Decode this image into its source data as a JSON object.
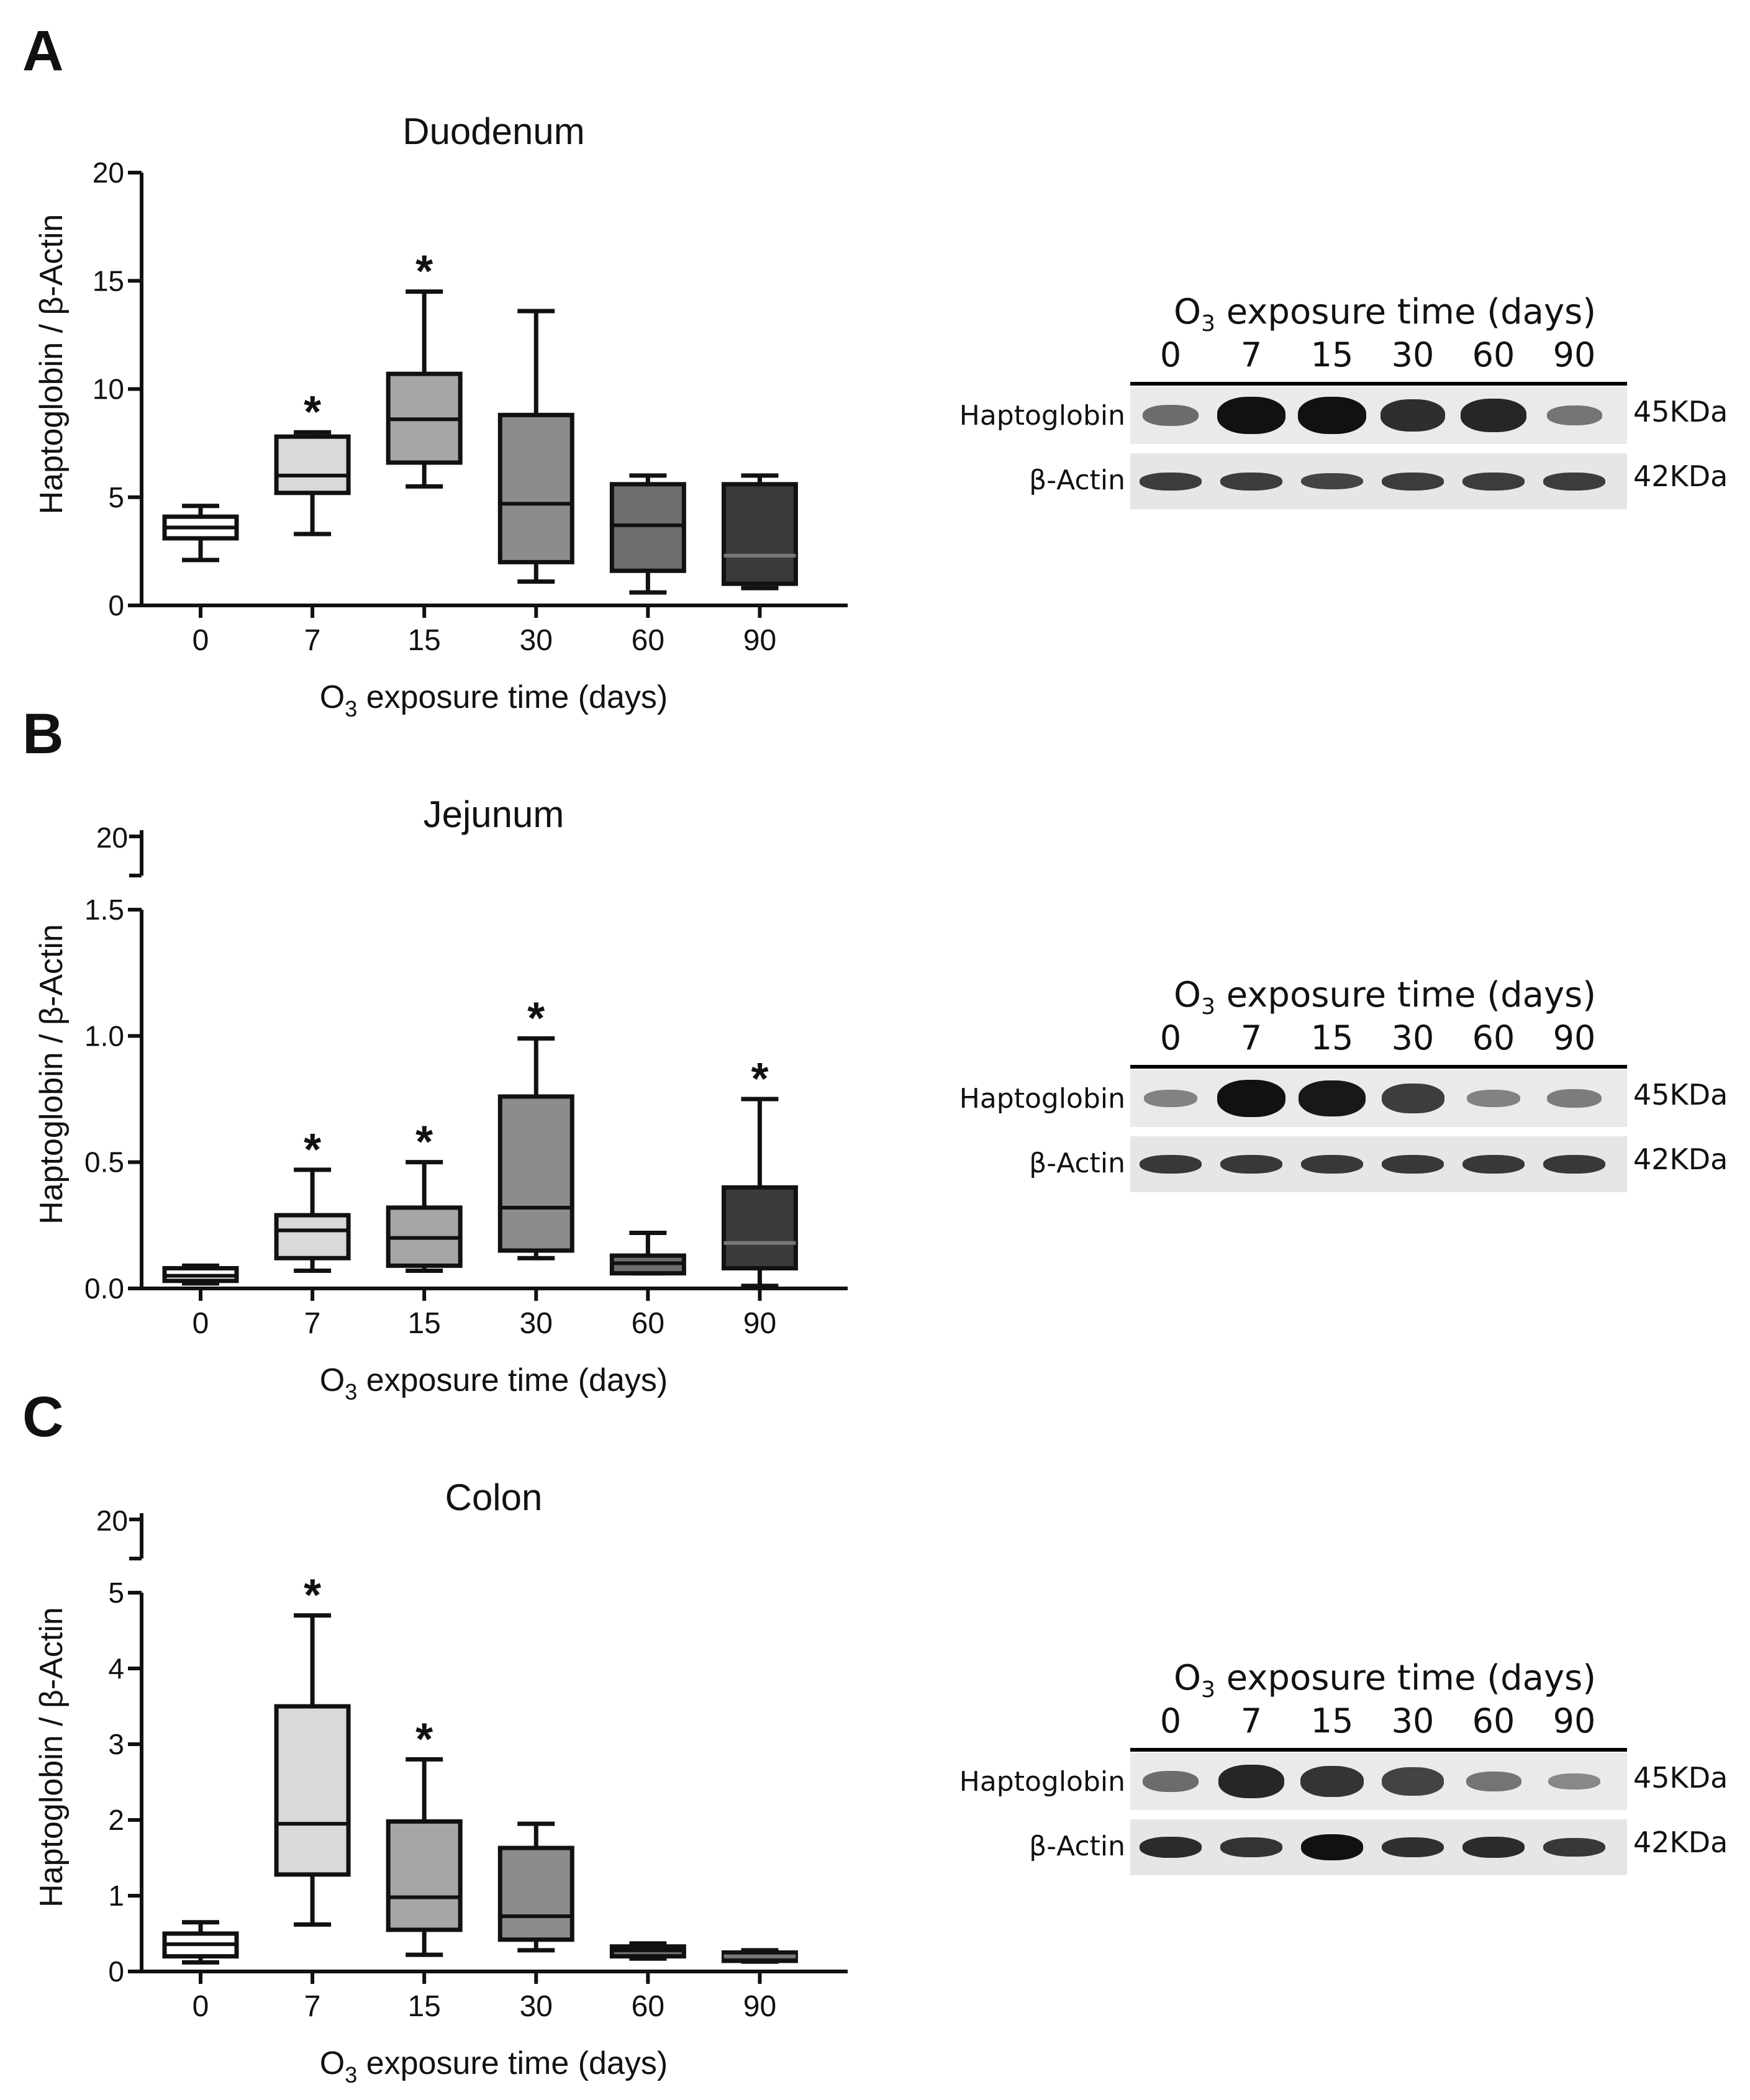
{
  "colors": {
    "ink": "#111111",
    "box_fills": [
      "#ffffff",
      "#d9d9d9",
      "#a6a6a6",
      "#8c8c8c",
      "#6e6e6e",
      "#3a3a3a"
    ]
  },
  "chart_data": [
    {
      "panel": "A",
      "type": "box",
      "title": "Duodenum",
      "ylabel": "Haptoglobin / β-Actin",
      "xlabel_main": "O",
      "xlabel_sub": "3",
      "xlabel_rest": " exposure time (days)",
      "categories": [
        "0",
        "7",
        "15",
        "30",
        "60",
        "90"
      ],
      "yticks": [
        "0",
        "5",
        "10",
        "15",
        "20"
      ],
      "ylim": [
        0,
        20
      ],
      "axis_break": null,
      "boxes": [
        {
          "min": 2.1,
          "q1": 3.1,
          "median": 3.6,
          "q3": 4.1,
          "max": 4.6,
          "sig": ""
        },
        {
          "min": 3.3,
          "q1": 5.2,
          "median": 6.0,
          "q3": 7.8,
          "max": 8.0,
          "sig": "*"
        },
        {
          "min": 5.5,
          "q1": 6.6,
          "median": 8.6,
          "q3": 10.7,
          "max": 14.5,
          "sig": "*"
        },
        {
          "min": 1.1,
          "q1": 2.0,
          "median": 4.7,
          "q3": 8.8,
          "max": 13.6,
          "sig": ""
        },
        {
          "min": 0.6,
          "q1": 1.6,
          "median": 3.7,
          "q3": 5.6,
          "max": 6.0,
          "sig": ""
        },
        {
          "min": 0.8,
          "q1": 1.0,
          "median": 2.3,
          "q3": 5.6,
          "max": 6.0,
          "sig": ""
        }
      ],
      "blot": {
        "title_main": "O",
        "title_sub": "3",
        "title_rest": " exposure time (days)",
        "lanes": [
          "0",
          "7",
          "15",
          "30",
          "60",
          "90"
        ],
        "rows": [
          "Haptoglobin",
          "β-Actin"
        ],
        "kda": [
          "45KDa",
          "42KDa"
        ],
        "hp_intensity": [
          0.35,
          1.0,
          1.0,
          0.8,
          0.85,
          0.3
        ],
        "ba_intensity": [
          0.5,
          0.5,
          0.4,
          0.5,
          0.5,
          0.5
        ]
      }
    },
    {
      "panel": "B",
      "type": "box",
      "title": "Jejunum",
      "ylabel": "Haptoglobin / β-Actin",
      "xlabel_main": "O",
      "xlabel_sub": "3",
      "xlabel_rest": " exposure time (days)",
      "categories": [
        "0",
        "7",
        "15",
        "30",
        "60",
        "90"
      ],
      "yticks": [
        "0.0",
        "0.5",
        "1.0",
        "1.5"
      ],
      "ylim": [
        0,
        1.5
      ],
      "axis_break": "20",
      "boxes": [
        {
          "min": 0.02,
          "q1": 0.03,
          "median": 0.05,
          "q3": 0.08,
          "max": 0.09,
          "sig": ""
        },
        {
          "min": 0.07,
          "q1": 0.12,
          "median": 0.23,
          "q3": 0.29,
          "max": 0.47,
          "sig": "*"
        },
        {
          "min": 0.07,
          "q1": 0.09,
          "median": 0.2,
          "q3": 0.32,
          "max": 0.5,
          "sig": "*"
        },
        {
          "min": 0.12,
          "q1": 0.15,
          "median": 0.32,
          "q3": 0.76,
          "max": 0.99,
          "sig": "*"
        },
        {
          "min": 0.06,
          "q1": 0.06,
          "median": 0.1,
          "q3": 0.13,
          "max": 0.22,
          "sig": ""
        },
        {
          "min": 0.01,
          "q1": 0.08,
          "median": 0.18,
          "q3": 0.4,
          "max": 0.75,
          "sig": "*"
        }
      ],
      "blot": {
        "title_main": "O",
        "title_sub": "3",
        "title_rest": " exposure time (days)",
        "lanes": [
          "0",
          "7",
          "15",
          "30",
          "60",
          "90"
        ],
        "rows": [
          "Haptoglobin",
          "β-Actin"
        ],
        "kda": [
          "45KDa",
          "42KDa"
        ],
        "hp_intensity": [
          0.2,
          1.0,
          0.95,
          0.7,
          0.2,
          0.25
        ],
        "ba_intensity": [
          0.55,
          0.55,
          0.55,
          0.55,
          0.55,
          0.55
        ]
      }
    },
    {
      "panel": "C",
      "type": "box",
      "title": "Colon",
      "ylabel": "Haptoglobin / β-Actin",
      "xlabel_main": "O",
      "xlabel_sub": "3",
      "xlabel_rest": " exposure time (days)",
      "categories": [
        "0",
        "7",
        "15",
        "30",
        "60",
        "90"
      ],
      "yticks": [
        "0",
        "1",
        "2",
        "3",
        "4",
        "5"
      ],
      "ylim": [
        0,
        5
      ],
      "axis_break": "20",
      "boxes": [
        {
          "min": 0.12,
          "q1": 0.2,
          "median": 0.36,
          "q3": 0.5,
          "max": 0.65,
          "sig": ""
        },
        {
          "min": 0.62,
          "q1": 1.28,
          "median": 1.95,
          "q3": 3.5,
          "max": 4.7,
          "sig": "*"
        },
        {
          "min": 0.22,
          "q1": 0.55,
          "median": 0.98,
          "q3": 1.98,
          "max": 2.8,
          "sig": "*"
        },
        {
          "min": 0.28,
          "q1": 0.42,
          "median": 0.73,
          "q3": 1.63,
          "max": 1.95,
          "sig": ""
        },
        {
          "min": 0.17,
          "q1": 0.2,
          "median": 0.28,
          "q3": 0.33,
          "max": 0.37,
          "sig": ""
        },
        {
          "min": 0.13,
          "q1": 0.14,
          "median": 0.2,
          "q3": 0.25,
          "max": 0.28,
          "sig": ""
        }
      ],
      "blot": {
        "title_main": "O",
        "title_sub": "3",
        "title_rest": " exposure time (days)",
        "lanes": [
          "0",
          "7",
          "15",
          "30",
          "60",
          "90"
        ],
        "rows": [
          "Haptoglobin",
          "β-Actin"
        ],
        "kda": [
          "45KDa",
          "42KDa"
        ],
        "hp_intensity": [
          0.35,
          0.85,
          0.75,
          0.65,
          0.3,
          0.15
        ],
        "ba_intensity": [
          0.7,
          0.6,
          1.0,
          0.65,
          0.7,
          0.55
        ]
      }
    }
  ]
}
